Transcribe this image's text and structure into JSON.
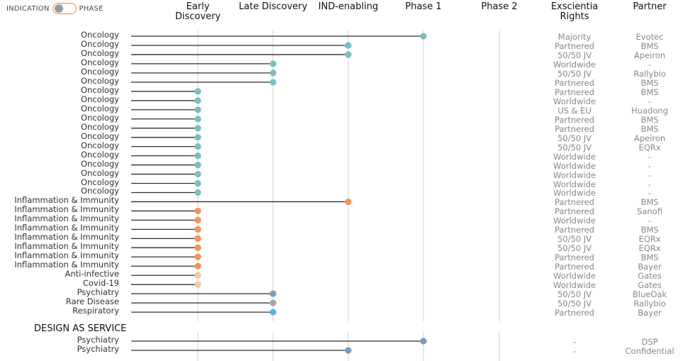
{
  "toggle": {
    "left_label": "INDICATION",
    "right_label": "PHASE"
  },
  "columns": {
    "rights": "Exscientia\nRights",
    "partner": "Partner"
  },
  "colors": {
    "Oncology": "#7bbfbf",
    "Inflammation & Immunity": "#f4935a",
    "Anti-infective": "#f0caa0",
    "Covid-19": "#f0caa0",
    "Psychiatry": "#7b9dba",
    "Rare Disease": "#a6a6a6",
    "Respiratory": "#5ab2e8",
    "line": "#2f2f2f",
    "grid": "#d9d9d9"
  },
  "section2_title": "DESIGN AS SERVICE",
  "chart_data": {
    "type": "lollipop",
    "stages": [
      "Early\nDiscovery",
      "Late Discovery",
      "IND-enabling",
      "Phase 1",
      "Phase 2"
    ],
    "programs": [
      {
        "indication": "Oncology",
        "stage": "Phase 1",
        "rights": "Majority",
        "partner": "Evotec"
      },
      {
        "indication": "Oncology",
        "stage": "IND-enabling",
        "rights": "Partnered",
        "partner": "BMS"
      },
      {
        "indication": "Oncology",
        "stage": "IND-enabling",
        "rights": "50/50 JV",
        "partner": "Apeiron"
      },
      {
        "indication": "Oncology",
        "stage": "Late Discovery",
        "rights": "Worldwide",
        "partner": "-"
      },
      {
        "indication": "Oncology",
        "stage": "Late Discovery",
        "rights": "50/50 JV",
        "partner": "Rallybio"
      },
      {
        "indication": "Oncology",
        "stage": "Late Discovery",
        "rights": "Partnered",
        "partner": "BMS"
      },
      {
        "indication": "Oncology",
        "stage": "Early\nDiscovery",
        "rights": "Partnered",
        "partner": "BMS"
      },
      {
        "indication": "Oncology",
        "stage": "Early\nDiscovery",
        "rights": "Worldwide",
        "partner": "-"
      },
      {
        "indication": "Oncology",
        "stage": "Early\nDiscovery",
        "rights": "US & EU",
        "partner": "Huadong"
      },
      {
        "indication": "Oncology",
        "stage": "Early\nDiscovery",
        "rights": "Partnered",
        "partner": "BMS"
      },
      {
        "indication": "Oncology",
        "stage": "Early\nDiscovery",
        "rights": "Partnered",
        "partner": "BMS"
      },
      {
        "indication": "Oncology",
        "stage": "Early\nDiscovery",
        "rights": "50/50 JV",
        "partner": "Apeiron"
      },
      {
        "indication": "Oncology",
        "stage": "Early\nDiscovery",
        "rights": "50/50 JV",
        "partner": "EQRx"
      },
      {
        "indication": "Oncology",
        "stage": "Early\nDiscovery",
        "rights": "Worldwide",
        "partner": "-"
      },
      {
        "indication": "Oncology",
        "stage": "Early\nDiscovery",
        "rights": "Worldwide",
        "partner": "-"
      },
      {
        "indication": "Oncology",
        "stage": "Early\nDiscovery",
        "rights": "Worldwide",
        "partner": "-"
      },
      {
        "indication": "Oncology",
        "stage": "Early\nDiscovery",
        "rights": "Worldwide",
        "partner": "-"
      },
      {
        "indication": "Oncology",
        "stage": "Early\nDiscovery",
        "rights": "Worldwide",
        "partner": "-"
      },
      {
        "indication": "Inflammation & Immunity",
        "stage": "IND-enabling",
        "rights": "Partnered",
        "partner": "BMS"
      },
      {
        "indication": "Inflammation & Immunity",
        "stage": "Early\nDiscovery",
        "rights": "Partnered",
        "partner": "Sanofi"
      },
      {
        "indication": "Inflammation & Immunity",
        "stage": "Early\nDiscovery",
        "rights": "Worldwide",
        "partner": "-"
      },
      {
        "indication": "Inflammation & Immunity",
        "stage": "Early\nDiscovery",
        "rights": "Partnered",
        "partner": "BMS"
      },
      {
        "indication": "Inflammation & Immunity",
        "stage": "Early\nDiscovery",
        "rights": "50/50 JV",
        "partner": "EQRx"
      },
      {
        "indication": "Inflammation & Immunity",
        "stage": "Early\nDiscovery",
        "rights": "50/50 JV",
        "partner": "EQRx"
      },
      {
        "indication": "Inflammation & Immunity",
        "stage": "Early\nDiscovery",
        "rights": "Partnered",
        "partner": "BMS"
      },
      {
        "indication": "Inflammation & Immunity",
        "stage": "Early\nDiscovery",
        "rights": "Partnered",
        "partner": "Bayer"
      },
      {
        "indication": "Anti-infective",
        "stage": "Early\nDiscovery",
        "rights": "Worldwide",
        "partner": "Gates"
      },
      {
        "indication": "Covid-19",
        "stage": "Early\nDiscovery",
        "rights": "Worldwide",
        "partner": "Gates"
      },
      {
        "indication": "Psychiatry",
        "stage": "Late Discovery",
        "rights": "50/50 JV",
        "partner": "BlueOak"
      },
      {
        "indication": "Rare Disease",
        "stage": "Late Discovery",
        "rights": "50/50 JV",
        "partner": "Rallybio"
      },
      {
        "indication": "Respiratory",
        "stage": "Late Discovery",
        "rights": "Partnered",
        "partner": "Bayer"
      }
    ],
    "design_as_service": [
      {
        "indication": "Psychiatry",
        "stage": "Phase 1",
        "rights": "-",
        "partner": "DSP"
      },
      {
        "indication": "Psychiatry",
        "stage": "IND-enabling",
        "rights": "-",
        "partner": "Confidential"
      }
    ]
  }
}
